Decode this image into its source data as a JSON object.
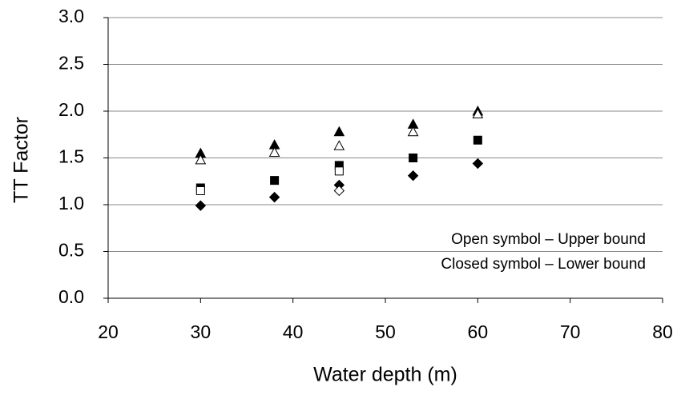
{
  "chart_data": {
    "type": "scatter",
    "xlabel": "Water depth (m)",
    "ylabel": "TT  Factor",
    "xlim": [
      20,
      80
    ],
    "xticks": [
      20,
      30,
      40,
      50,
      60,
      70,
      80
    ],
    "ylim": [
      0,
      3
    ],
    "yticks": [
      {
        "value": 0,
        "label": "0.0"
      },
      {
        "value": 0.5,
        "label": "0.5"
      },
      {
        "value": 1,
        "label": "1.0"
      },
      {
        "value": 1.5,
        "label": "1.5"
      },
      {
        "value": 2,
        "label": "2.0"
      },
      {
        "value": 2.5,
        "label": "2.5"
      },
      {
        "value": 3,
        "label": "3.0"
      }
    ],
    "grid": true,
    "annotations": [
      "Open symbol – Upper bound",
      "Closed symbol – Lower bound"
    ],
    "series": [
      {
        "marker": "triangle",
        "filled": true,
        "color": "#000000",
        "x": [
          30,
          38,
          45,
          53,
          60
        ],
        "values": [
          1.55,
          1.64,
          1.78,
          1.86,
          2.0
        ]
      },
      {
        "marker": "triangle",
        "filled": false,
        "color": "#000000",
        "x": [
          30,
          38,
          45,
          53,
          60
        ],
        "values": [
          1.48,
          1.56,
          1.63,
          1.78,
          1.97
        ]
      },
      {
        "marker": "square",
        "filled": true,
        "color": "#000000",
        "x": [
          30,
          38,
          45,
          53,
          60
        ],
        "values": [
          1.18,
          1.26,
          1.42,
          1.5,
          1.69
        ]
      },
      {
        "marker": "square",
        "filled": false,
        "color": "#000000",
        "x": [
          30,
          45
        ],
        "values": [
          1.15,
          1.36
        ]
      },
      {
        "marker": "diamond",
        "filled": true,
        "color": "#000000",
        "x": [
          30,
          38,
          45,
          53,
          60
        ],
        "values": [
          0.99,
          1.08,
          1.21,
          1.31,
          1.44
        ]
      },
      {
        "marker": "diamond",
        "filled": false,
        "color": "#000000",
        "x": [
          45
        ],
        "values": [
          1.15
        ]
      }
    ]
  }
}
